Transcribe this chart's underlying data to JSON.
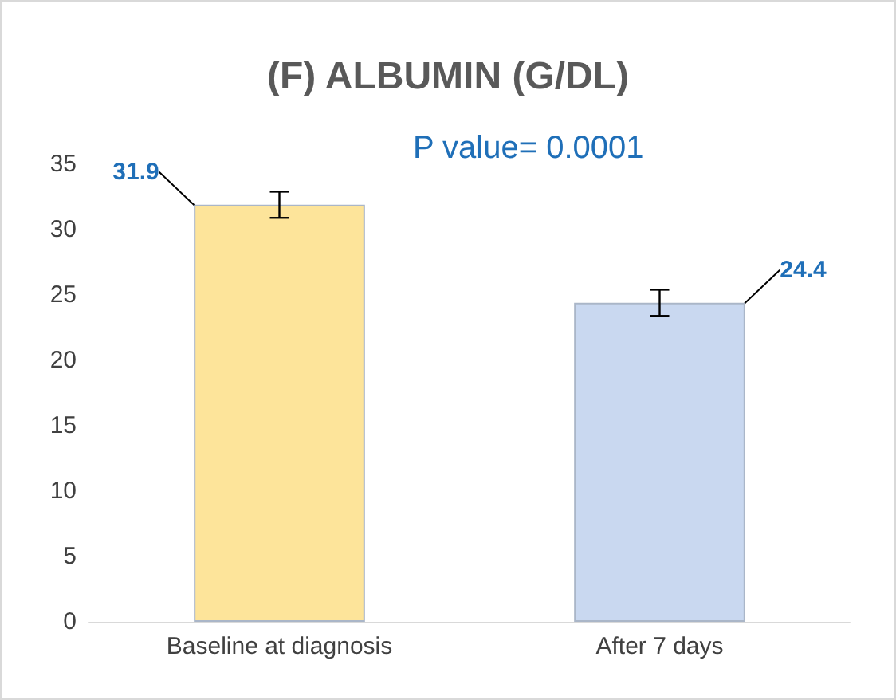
{
  "chart_data": {
    "type": "bar",
    "title": "(F) ALBUMIN (G/DL)",
    "categories": [
      "Baseline at diagnosis",
      "After 7 days"
    ],
    "values": [
      31.9,
      24.4
    ],
    "colors": [
      "#fde49a",
      "#c9d8f0"
    ],
    "errors": [
      1,
      1
    ],
    "ylim": [
      0,
      35
    ],
    "yticks": [
      0,
      5,
      10,
      15,
      20,
      25,
      30,
      35
    ],
    "grid": false,
    "data_labels": true,
    "annotations": [
      "P value= 0.0001"
    ]
  }
}
